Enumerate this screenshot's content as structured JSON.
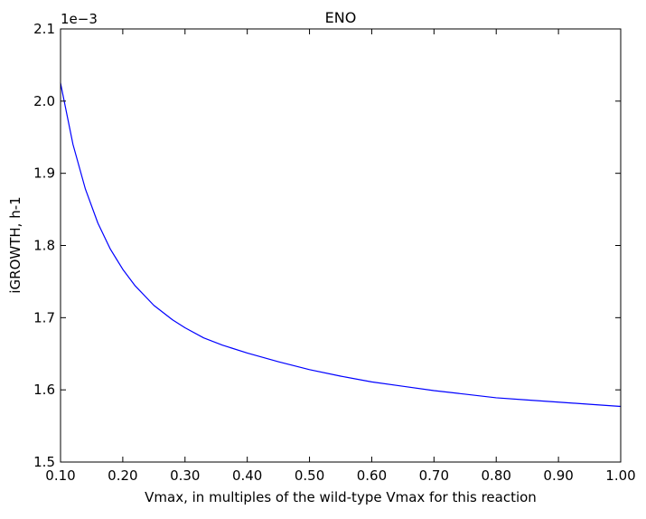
{
  "chart_data": {
    "type": "line",
    "title": "ENO",
    "xlabel": "Vmax, in multiples of the wild-type Vmax for this reaction",
    "ylabel": "iGROWTH, h-1",
    "y_offset_label": "1e−3",
    "xlim": [
      0.1,
      1.0
    ],
    "ylim": [
      1.5,
      2.1
    ],
    "x_ticks": [
      0.1,
      0.2,
      0.3,
      0.4,
      0.5,
      0.6,
      0.7,
      0.8,
      0.9,
      1.0
    ],
    "x_tick_labels": [
      "0.10",
      "0.20",
      "0.30",
      "0.40",
      "0.50",
      "0.60",
      "0.70",
      "0.80",
      "0.90",
      "1.00"
    ],
    "y_ticks": [
      1.5,
      1.6,
      1.7,
      1.8,
      1.9,
      2.0,
      2.1
    ],
    "y_tick_labels": [
      "1.5",
      "1.6",
      "1.7",
      "1.8",
      "1.9",
      "2.0",
      "2.1"
    ],
    "grid": false,
    "series": [
      {
        "color": "#0000ff",
        "x": [
          0.1,
          0.12,
          0.14,
          0.16,
          0.18,
          0.2,
          0.22,
          0.25,
          0.28,
          0.3,
          0.33,
          0.36,
          0.4,
          0.45,
          0.5,
          0.55,
          0.6,
          0.65,
          0.7,
          0.75,
          0.8,
          0.85,
          0.9,
          0.95,
          1.0
        ],
        "y": [
          2.025,
          1.94,
          1.878,
          1.831,
          1.795,
          1.767,
          1.744,
          1.717,
          1.697,
          1.686,
          1.672,
          1.662,
          1.651,
          1.639,
          1.628,
          1.619,
          1.611,
          1.605,
          1.599,
          1.594,
          1.589,
          1.586,
          1.583,
          1.58,
          1.577
        ]
      }
    ]
  }
}
